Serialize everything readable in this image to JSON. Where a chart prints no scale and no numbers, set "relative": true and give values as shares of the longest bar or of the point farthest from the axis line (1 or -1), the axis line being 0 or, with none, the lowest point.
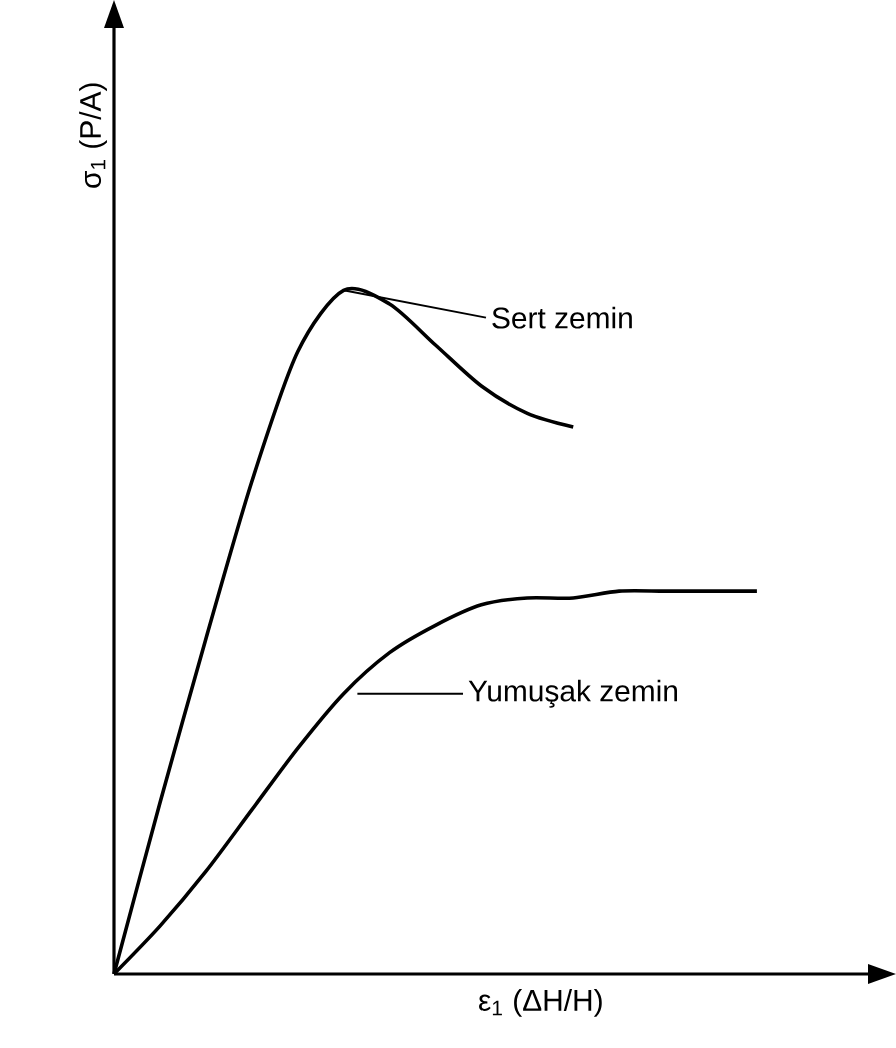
{
  "chart_data": {
    "type": "line",
    "relative": true,
    "legend": "right",
    "xlabel": "ε$_{1}$ (ΔH/H)",
    "ylabel": "σ$_{1}$ (P/A)",
    "categories": [
      null,
      null,
      null,
      null,
      null,
      null,
      null,
      null,
      null,
      null,
      null,
      null,
      null,
      null,
      null
    ],
    "series": [
      {
        "name": "Sert zemin",
        "color": "#000000",
        "values": [
          0,
          0.25,
          0.49,
          0.72,
          0.91,
          1.0,
          0.98,
          0.92,
          0.86,
          0.82,
          0.8,
          null,
          null,
          null,
          null
        ]
      },
      {
        "name": "Yumuşak zemin",
        "color": "#000000",
        "values": [
          0,
          0.07,
          0.15,
          0.24,
          0.33,
          0.41,
          0.47,
          0.51,
          0.54,
          0.55,
          0.55,
          0.56,
          0.56,
          0.56,
          0.56
        ]
      }
    ]
  }
}
